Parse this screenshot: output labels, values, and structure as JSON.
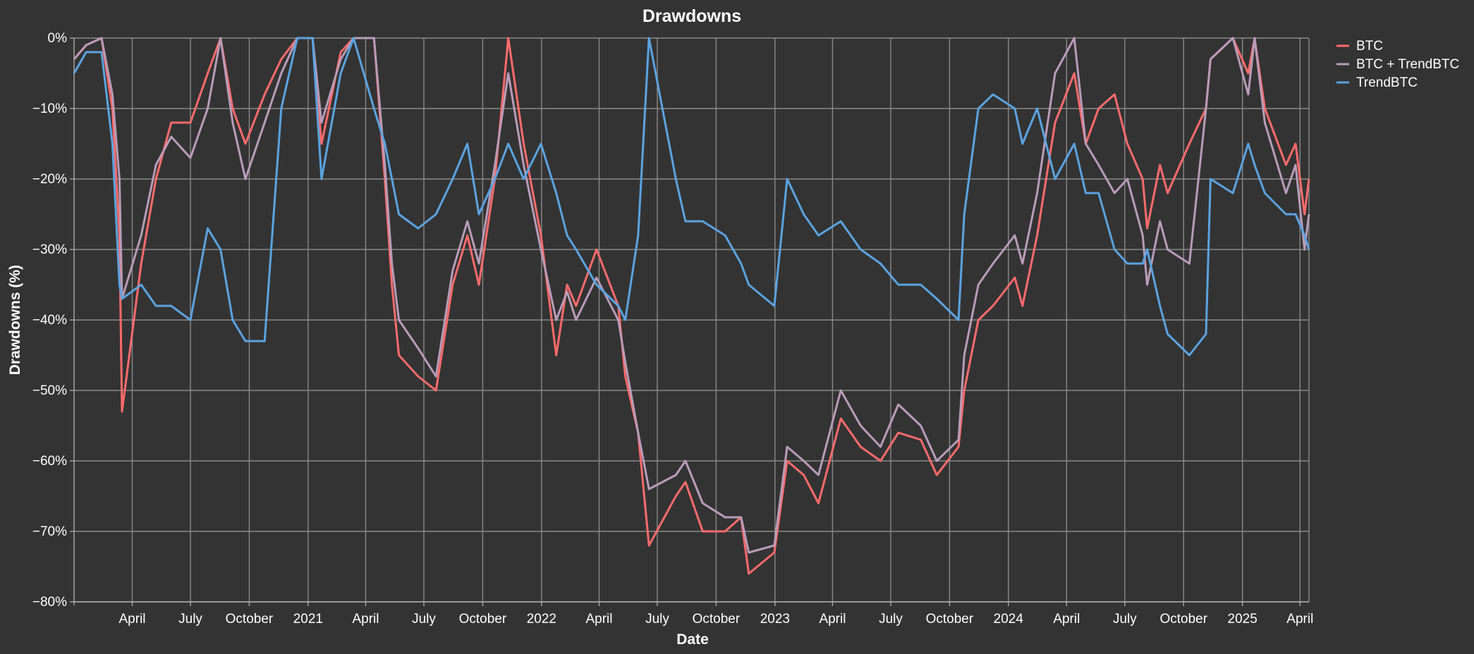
{
  "chart_data": {
    "type": "line",
    "title": "Drawdowns",
    "xlabel": "Date",
    "ylabel": "Drawdowns (%)",
    "xlim": [
      "2020-01-01",
      "2025-04-15"
    ],
    "ylim": [
      -80,
      0
    ],
    "y_ticks": [
      0,
      -10,
      -20,
      -30,
      -40,
      -50,
      -60,
      -70,
      -80
    ],
    "y_tick_labels": [
      "0%",
      "−10%",
      "−20%",
      "−30%",
      "−40%",
      "−50%",
      "−60%",
      "−70%",
      "−80%"
    ],
    "x_ticks": [
      "2020-04-01",
      "2020-07-01",
      "2020-10-01",
      "2021-01-01",
      "2021-04-01",
      "2021-07-01",
      "2021-10-01",
      "2022-01-01",
      "2022-04-01",
      "2022-07-01",
      "2022-10-01",
      "2023-01-01",
      "2023-04-01",
      "2023-07-01",
      "2023-10-01",
      "2024-01-01",
      "2024-04-01",
      "2024-07-01",
      "2024-10-01",
      "2025-01-01",
      "2025-04-01"
    ],
    "x_tick_labels": [
      "April",
      "July",
      "October",
      "2021",
      "April",
      "July",
      "October",
      "2022",
      "April",
      "July",
      "October",
      "2023",
      "April",
      "July",
      "October",
      "2024",
      "April",
      "July",
      "October",
      "2025",
      "April"
    ],
    "grid": true,
    "legend_position": "right",
    "series": [
      {
        "name": "BTC",
        "color": "#ff6b6b",
        "x": [
          "2020-01-01",
          "2020-01-20",
          "2020-02-13",
          "2020-03-01",
          "2020-03-12",
          "2020-03-16",
          "2020-04-15",
          "2020-05-08",
          "2020-06-01",
          "2020-07-01",
          "2020-07-28",
          "2020-08-17",
          "2020-09-05",
          "2020-09-25",
          "2020-10-25",
          "2020-11-20",
          "2020-12-15",
          "2021-01-08",
          "2021-01-22",
          "2021-02-21",
          "2021-03-13",
          "2021-04-14",
          "2021-05-01",
          "2021-05-12",
          "2021-05-23",
          "2021-06-22",
          "2021-07-20",
          "2021-08-15",
          "2021-09-07",
          "2021-09-25",
          "2021-10-20",
          "2021-11-10",
          "2021-12-04",
          "2021-12-31",
          "2022-01-24",
          "2022-02-10",
          "2022-02-24",
          "2022-03-28",
          "2022-05-01",
          "2022-05-12",
          "2022-06-01",
          "2022-06-18",
          "2022-07-30",
          "2022-08-14",
          "2022-09-10",
          "2022-10-15",
          "2022-11-09",
          "2022-11-21",
          "2022-12-31",
          "2023-01-20",
          "2023-02-15",
          "2023-03-10",
          "2023-04-14",
          "2023-05-15",
          "2023-06-15",
          "2023-07-13",
          "2023-08-17",
          "2023-09-11",
          "2023-10-15",
          "2023-10-24",
          "2023-11-15",
          "2023-12-08",
          "2024-01-11",
          "2024-01-23",
          "2024-02-15",
          "2024-03-14",
          "2024-04-13",
          "2024-05-01",
          "2024-05-21",
          "2024-06-15",
          "2024-07-05",
          "2024-07-29",
          "2024-08-05",
          "2024-08-25",
          "2024-09-06",
          "2024-10-10",
          "2024-11-05",
          "2024-11-12",
          "2024-12-17",
          "2025-01-10",
          "2025-01-20",
          "2025-02-05",
          "2025-03-10",
          "2025-03-25",
          "2025-04-08",
          "2025-04-15"
        ],
        "values": [
          -3,
          -1,
          0,
          -10,
          -28,
          -53,
          -32,
          -20,
          -12,
          -12,
          -5,
          0,
          -10,
          -15,
          -8,
          -3,
          0,
          0,
          -15,
          -2,
          0,
          0,
          -20,
          -35,
          -45,
          -48,
          -50,
          -35,
          -28,
          -35,
          -20,
          0,
          -15,
          -28,
          -45,
          -35,
          -38,
          -30,
          -38,
          -48,
          -56,
          -72,
          -65,
          -63,
          -70,
          -70,
          -68,
          -76,
          -73,
          -60,
          -62,
          -66,
          -54,
          -58,
          -60,
          -56,
          -57,
          -62,
          -58,
          -50,
          -40,
          -38,
          -34,
          -38,
          -28,
          -12,
          -5,
          -15,
          -10,
          -8,
          -15,
          -20,
          -27,
          -18,
          -22,
          -15,
          -10,
          -3,
          0,
          -5,
          0,
          -10,
          -18,
          -15,
          -25,
          -20
        ]
      },
      {
        "name": "BTC + TrendBTC",
        "color": "#b89cb8",
        "x": [
          "2020-01-01",
          "2020-01-20",
          "2020-02-13",
          "2020-03-01",
          "2020-03-12",
          "2020-03-16",
          "2020-04-15",
          "2020-05-08",
          "2020-06-01",
          "2020-07-01",
          "2020-07-28",
          "2020-08-17",
          "2020-09-05",
          "2020-09-25",
          "2020-10-25",
          "2020-11-20",
          "2020-12-15",
          "2021-01-08",
          "2021-01-22",
          "2021-02-21",
          "2021-03-13",
          "2021-04-14",
          "2021-05-01",
          "2021-05-12",
          "2021-05-23",
          "2021-06-22",
          "2021-07-20",
          "2021-08-15",
          "2021-09-07",
          "2021-09-25",
          "2021-10-20",
          "2021-11-10",
          "2021-12-04",
          "2021-12-31",
          "2022-01-24",
          "2022-02-10",
          "2022-02-24",
          "2022-03-28",
          "2022-05-01",
          "2022-05-12",
          "2022-06-01",
          "2022-06-18",
          "2022-07-30",
          "2022-08-14",
          "2022-09-10",
          "2022-10-15",
          "2022-11-09",
          "2022-11-21",
          "2022-12-31",
          "2023-01-20",
          "2023-02-15",
          "2023-03-10",
          "2023-04-14",
          "2023-05-15",
          "2023-06-15",
          "2023-07-13",
          "2023-08-17",
          "2023-09-11",
          "2023-10-15",
          "2023-10-24",
          "2023-11-15",
          "2023-12-08",
          "2024-01-11",
          "2024-01-23",
          "2024-02-15",
          "2024-03-14",
          "2024-04-13",
          "2024-05-01",
          "2024-05-21",
          "2024-06-15",
          "2024-07-05",
          "2024-07-29",
          "2024-08-05",
          "2024-08-25",
          "2024-09-06",
          "2024-10-10",
          "2024-11-05",
          "2024-11-12",
          "2024-12-17",
          "2025-01-10",
          "2025-01-20",
          "2025-02-05",
          "2025-03-10",
          "2025-03-25",
          "2025-04-08",
          "2025-04-15"
        ],
        "values": [
          -3,
          -1,
          0,
          -8,
          -20,
          -37,
          -28,
          -18,
          -14,
          -17,
          -10,
          0,
          -12,
          -20,
          -12,
          -5,
          0,
          0,
          -12,
          -3,
          0,
          0,
          -18,
          -32,
          -40,
          -44,
          -48,
          -33,
          -26,
          -32,
          -18,
          -5,
          -18,
          -30,
          -40,
          -36,
          -40,
          -34,
          -40,
          -46,
          -56,
          -64,
          -62,
          -60,
          -66,
          -68,
          -68,
          -73,
          -72,
          -58,
          -60,
          -62,
          -50,
          -55,
          -58,
          -52,
          -55,
          -60,
          -57,
          -45,
          -35,
          -32,
          -28,
          -32,
          -22,
          -5,
          0,
          -15,
          -18,
          -22,
          -20,
          -28,
          -35,
          -26,
          -30,
          -32,
          -10,
          -3,
          0,
          -8,
          0,
          -12,
          -22,
          -18,
          -30,
          -25
        ]
      },
      {
        "name": "TrendBTC",
        "color": "#5ba3e0",
        "x": [
          "2020-01-01",
          "2020-01-20",
          "2020-02-13",
          "2020-03-01",
          "2020-03-12",
          "2020-03-16",
          "2020-04-15",
          "2020-05-08",
          "2020-06-01",
          "2020-07-01",
          "2020-07-28",
          "2020-08-17",
          "2020-09-05",
          "2020-09-25",
          "2020-10-25",
          "2020-11-20",
          "2020-12-15",
          "2021-01-08",
          "2021-01-22",
          "2021-02-21",
          "2021-03-13",
          "2021-04-14",
          "2021-05-01",
          "2021-05-12",
          "2021-05-23",
          "2021-06-22",
          "2021-07-20",
          "2021-08-15",
          "2021-09-07",
          "2021-09-25",
          "2021-10-20",
          "2021-11-10",
          "2021-12-04",
          "2021-12-31",
          "2022-01-24",
          "2022-02-10",
          "2022-02-24",
          "2022-03-28",
          "2022-05-01",
          "2022-05-12",
          "2022-06-01",
          "2022-06-18",
          "2022-07-30",
          "2022-08-14",
          "2022-09-10",
          "2022-10-15",
          "2022-11-09",
          "2022-11-21",
          "2022-12-31",
          "2023-01-20",
          "2023-02-15",
          "2023-03-10",
          "2023-04-14",
          "2023-05-15",
          "2023-06-15",
          "2023-07-13",
          "2023-08-17",
          "2023-09-11",
          "2023-10-15",
          "2023-10-24",
          "2023-11-15",
          "2023-12-08",
          "2024-01-11",
          "2024-01-23",
          "2024-02-15",
          "2024-03-14",
          "2024-04-13",
          "2024-05-01",
          "2024-05-21",
          "2024-06-15",
          "2024-07-05",
          "2024-07-29",
          "2024-08-05",
          "2024-08-25",
          "2024-09-06",
          "2024-10-10",
          "2024-11-05",
          "2024-11-12",
          "2024-12-17",
          "2025-01-10",
          "2025-01-20",
          "2025-02-05",
          "2025-03-10",
          "2025-03-25",
          "2025-04-08",
          "2025-04-15"
        ],
        "values": [
          -5,
          -2,
          -2,
          -15,
          -35,
          -37,
          -35,
          -38,
          -38,
          -40,
          -27,
          -30,
          -40,
          -43,
          -43,
          -10,
          0,
          0,
          -20,
          -5,
          0,
          -10,
          -15,
          -20,
          -25,
          -27,
          -25,
          -20,
          -15,
          -25,
          -20,
          -15,
          -20,
          -15,
          -22,
          -28,
          -30,
          -35,
          -38,
          -40,
          -28,
          0,
          -20,
          -26,
          -26,
          -28,
          -32,
          -35,
          -38,
          -20,
          -25,
          -28,
          -26,
          -30,
          -32,
          -35,
          -35,
          -37,
          -40,
          -25,
          -10,
          -8,
          -10,
          -15,
          -10,
          -20,
          -15,
          -22,
          -22,
          -30,
          -32,
          -32,
          -30,
          -38,
          -42,
          -45,
          -42,
          -20,
          -22,
          -15,
          -18,
          -22,
          -25,
          -25,
          -28,
          -30
        ]
      }
    ]
  }
}
